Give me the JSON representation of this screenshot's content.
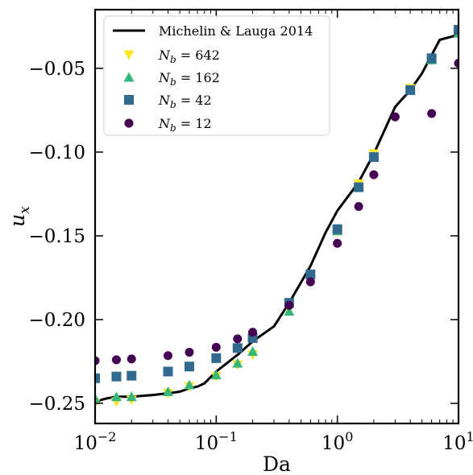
{
  "chart_data": {
    "type": "scatter",
    "xlabel": "Da",
    "ylabel": "u_x",
    "xscale": "log",
    "xlim": [
      0.01,
      10
    ],
    "ylim": [
      -0.262,
      -0.015
    ],
    "x_ticks": [
      {
        "value": 0.01,
        "base": "10",
        "exp": "−2"
      },
      {
        "value": 0.1,
        "base": "10",
        "exp": "−1"
      },
      {
        "value": 1,
        "base": "10",
        "exp": "0"
      },
      {
        "value": 10,
        "base": "10",
        "exp": "1"
      }
    ],
    "y_ticks": [
      {
        "value": -0.25,
        "label": "−0.25"
      },
      {
        "value": -0.2,
        "label": "−0.20"
      },
      {
        "value": -0.15,
        "label": "−0.15"
      },
      {
        "value": -0.1,
        "label": "−0.10"
      },
      {
        "value": -0.05,
        "label": "−0.05"
      }
    ],
    "grid": false,
    "legend_position": "top-left",
    "series": [
      {
        "name": "Michelin & Lauga 2014",
        "kind": "line",
        "color": "#000000",
        "x": [
          0.01,
          0.0125,
          0.015,
          0.02,
          0.03,
          0.04,
          0.05,
          0.06,
          0.07,
          0.08,
          0.1,
          0.15,
          0.2,
          0.3,
          0.4,
          0.6,
          0.8,
          1,
          1.5,
          2,
          3,
          4,
          5,
          7,
          10
        ],
        "y": [
          -0.249,
          -0.247,
          -0.246,
          -0.246,
          -0.245,
          -0.244,
          -0.243,
          -0.241,
          -0.24,
          -0.238,
          -0.231,
          -0.221,
          -0.213,
          -0.204,
          -0.19,
          -0.168,
          -0.148,
          -0.135,
          -0.118,
          -0.101,
          -0.073,
          -0.063,
          -0.053,
          -0.033,
          -0.03
        ]
      },
      {
        "name": "N_b = 642",
        "label_var": "N",
        "label_sub": "b",
        "label_rest": " = 642",
        "kind": "marker",
        "marker": "triangle-down",
        "color": "#fde725",
        "x": [
          0.01,
          0.015,
          0.02,
          0.04,
          0.06,
          0.1,
          0.15,
          0.2,
          0.4,
          0.6,
          1,
          1.5,
          2,
          4,
          6,
          10
        ],
        "y": [
          -0.25,
          -0.249,
          -0.248,
          -0.244,
          -0.24,
          -0.234,
          -0.227,
          -0.221,
          -0.194,
          -0.173,
          -0.147,
          -0.119,
          -0.101,
          -0.062,
          -0.045,
          -0.028
        ]
      },
      {
        "name": "N_b = 162",
        "label_var": "N",
        "label_sub": "b",
        "label_rest": " = 162",
        "kind": "marker",
        "marker": "triangle-up",
        "color": "#35b779",
        "x": [
          0.01,
          0.015,
          0.02,
          0.04,
          0.06,
          0.1,
          0.15,
          0.2,
          0.4,
          0.6,
          1,
          1.5,
          2,
          4,
          6,
          10
        ],
        "y": [
          -0.247,
          -0.246,
          -0.246,
          -0.243,
          -0.239,
          -0.233,
          -0.226,
          -0.219,
          -0.195,
          -0.173,
          -0.147,
          -0.121,
          -0.103,
          -0.063,
          -0.045,
          -0.029
        ]
      },
      {
        "name": "N_b = 42",
        "label_var": "N",
        "label_sub": "b",
        "label_rest": " = 42",
        "kind": "marker",
        "marker": "square",
        "color": "#31688e",
        "x": [
          0.01,
          0.015,
          0.02,
          0.04,
          0.06,
          0.1,
          0.15,
          0.2,
          0.4,
          0.6,
          1,
          1.5,
          2,
          4,
          6,
          10
        ],
        "y": [
          -0.235,
          -0.234,
          -0.2335,
          -0.231,
          -0.228,
          -0.223,
          -0.217,
          -0.211,
          -0.19,
          -0.173,
          -0.146,
          -0.121,
          -0.103,
          -0.063,
          -0.044,
          -0.027
        ]
      },
      {
        "name": "N_b = 12",
        "label_var": "N",
        "label_sub": "b",
        "label_rest": " = 12",
        "kind": "marker",
        "marker": "circle",
        "color": "#440154",
        "x": [
          0.01,
          0.015,
          0.02,
          0.04,
          0.06,
          0.1,
          0.15,
          0.2,
          0.4,
          0.6,
          1,
          1.5,
          2,
          3,
          6,
          10
        ],
        "y": [
          -0.2245,
          -0.224,
          -0.2235,
          -0.2215,
          -0.2195,
          -0.2165,
          -0.2115,
          -0.2075,
          -0.1915,
          -0.1775,
          -0.1545,
          -0.1325,
          -0.1135,
          -0.079,
          -0.077,
          -0.047
        ]
      }
    ]
  }
}
